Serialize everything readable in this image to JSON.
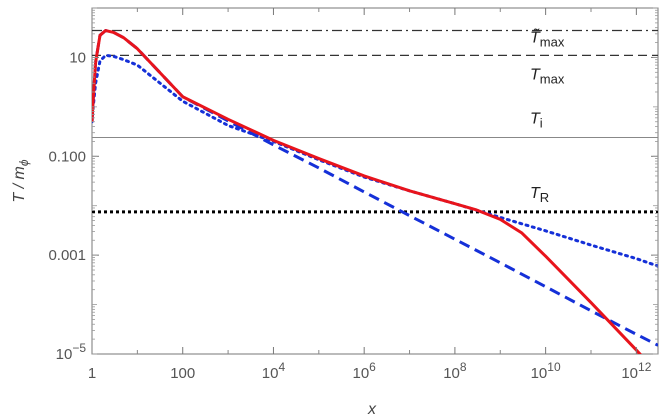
{
  "chart_data": {
    "type": "line",
    "title": "",
    "xlabel": "x",
    "ylabel": "T / m",
    "ylabel_sub": "ϕ",
    "x_scale": "log",
    "y_scale": "log",
    "xlim": [
      1,
      3000000000000.0
    ],
    "ylim": [
      1e-05,
      100
    ],
    "grid": false,
    "x_ticks": [
      {
        "value": 1,
        "label": "1"
      },
      {
        "value": 100,
        "label": "100"
      },
      {
        "value": 10000.0,
        "base": "10",
        "exp": "4"
      },
      {
        "value": 1000000.0,
        "base": "10",
        "exp": "6"
      },
      {
        "value": 100000000.0,
        "base": "10",
        "exp": "8"
      },
      {
        "value": 10000000000.0,
        "base": "10",
        "exp": "10"
      },
      {
        "value": 1000000000000.0,
        "base": "10",
        "exp": "12"
      }
    ],
    "y_ticks": [
      {
        "value": 10,
        "label": "10"
      },
      {
        "value": 0.1,
        "label": "0.100"
      },
      {
        "value": 0.001,
        "label": "0.001"
      },
      {
        "value": 1e-05,
        "base": "10",
        "exp": "−5"
      }
    ],
    "hlines": [
      {
        "y": 35,
        "style": "dashdot",
        "color": "#333333",
        "label": "T̃",
        "sub": "max"
      },
      {
        "y": 11,
        "style": "dashed",
        "color": "#333333",
        "label": "T",
        "sub": "max"
      },
      {
        "y": 0.24,
        "style": "solid",
        "color": "#888888",
        "label": "T",
        "sub": "i"
      },
      {
        "y": 0.0075,
        "style": "dotted",
        "color": "#000000",
        "label": "T",
        "sub": "R"
      }
    ],
    "series": [
      {
        "style": "solid",
        "color": "#e8141c",
        "x": [
          1,
          1.05,
          1.2,
          1.5,
          2,
          3,
          5,
          10,
          100,
          1000,
          10000.0,
          100000.0,
          1000000.0,
          10000000.0,
          100000000.0,
          300000000.0,
          1000000000.0,
          3000000000.0,
          10000000000.0,
          100000000000.0,
          1000000000000.0,
          2000000000000.0
        ],
        "y": [
          0.5,
          1.2,
          8,
          28,
          35,
          32,
          25,
          15,
          1.6,
          0.56,
          0.21,
          0.09,
          0.04,
          0.02,
          0.011,
          0.0082,
          0.0053,
          0.0028,
          0.00095,
          0.00011,
          1.2e-05,
          6e-06
        ]
      },
      {
        "style": "dashed",
        "color": "#1530d8",
        "x": [
          1,
          1.05,
          1.2,
          1.5,
          2,
          3,
          5,
          10,
          100,
          1000,
          10000.0,
          100000.0,
          1000000.0,
          10000000.0,
          100000000.0,
          1000000000.0,
          10000000000.0,
          100000000000.0,
          1000000000000.0,
          3000000000000.0
        ],
        "y": [
          0.5,
          1.2,
          8,
          28,
          35,
          32,
          25,
          15,
          1.6,
          0.52,
          0.17,
          0.058,
          0.019,
          0.0063,
          0.0021,
          0.0007,
          0.00023,
          7.5e-05,
          2.5e-05,
          1.5e-05
        ]
      },
      {
        "style": "dotted",
        "color": "#1530d8",
        "x": [
          1,
          1.05,
          1.2,
          1.5,
          2,
          3,
          5,
          10,
          100,
          1000,
          10000.0,
          100000.0,
          1000000.0,
          10000000.0,
          100000000.0,
          1000000000.0,
          10000000000.0,
          100000000000.0,
          1000000000000.0,
          3000000000000.0
        ],
        "y": [
          0.5,
          0.9,
          3,
          8.5,
          11,
          10.5,
          9,
          7,
          1.3,
          0.42,
          0.2,
          0.085,
          0.038,
          0.02,
          0.011,
          0.0058,
          0.0031,
          0.0016,
          0.00085,
          0.0006
        ]
      }
    ]
  }
}
